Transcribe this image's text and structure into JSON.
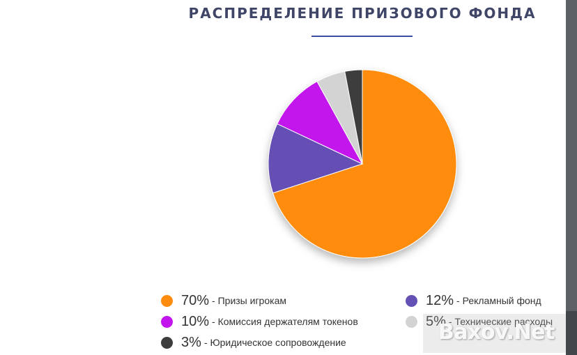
{
  "title": "РАСПРЕДЕЛЕНИЕ ПРИЗОВОГО ФОНДА",
  "watermark": "Baxov.Net",
  "colors": {
    "title": "#3f4566",
    "underline": "#3c4a9c"
  },
  "chart_data": {
    "type": "pie",
    "title": "РАСПРЕДЕЛЕНИЕ ПРИЗОВОГО ФОНДА",
    "slices": [
      {
        "label": "Призы игрокам",
        "value": 70,
        "pct_label": "70%",
        "color": "#ff8c0f"
      },
      {
        "label": "Рекламный фонд",
        "value": 12,
        "pct_label": "12%",
        "color": "#6550b5"
      },
      {
        "label": "Комиссия держателям токенов",
        "value": 10,
        "pct_label": "10%",
        "color": "#c214ec"
      },
      {
        "label": "Технические расходы",
        "value": 5,
        "pct_label": "5%",
        "color": "#d3d3d3"
      },
      {
        "label": "Юридическое сопровождение",
        "value": 3,
        "pct_label": "3%",
        "color": "#3d3d3d"
      }
    ],
    "start": "top",
    "direction": "clockwise",
    "legend_position": "bottom"
  }
}
